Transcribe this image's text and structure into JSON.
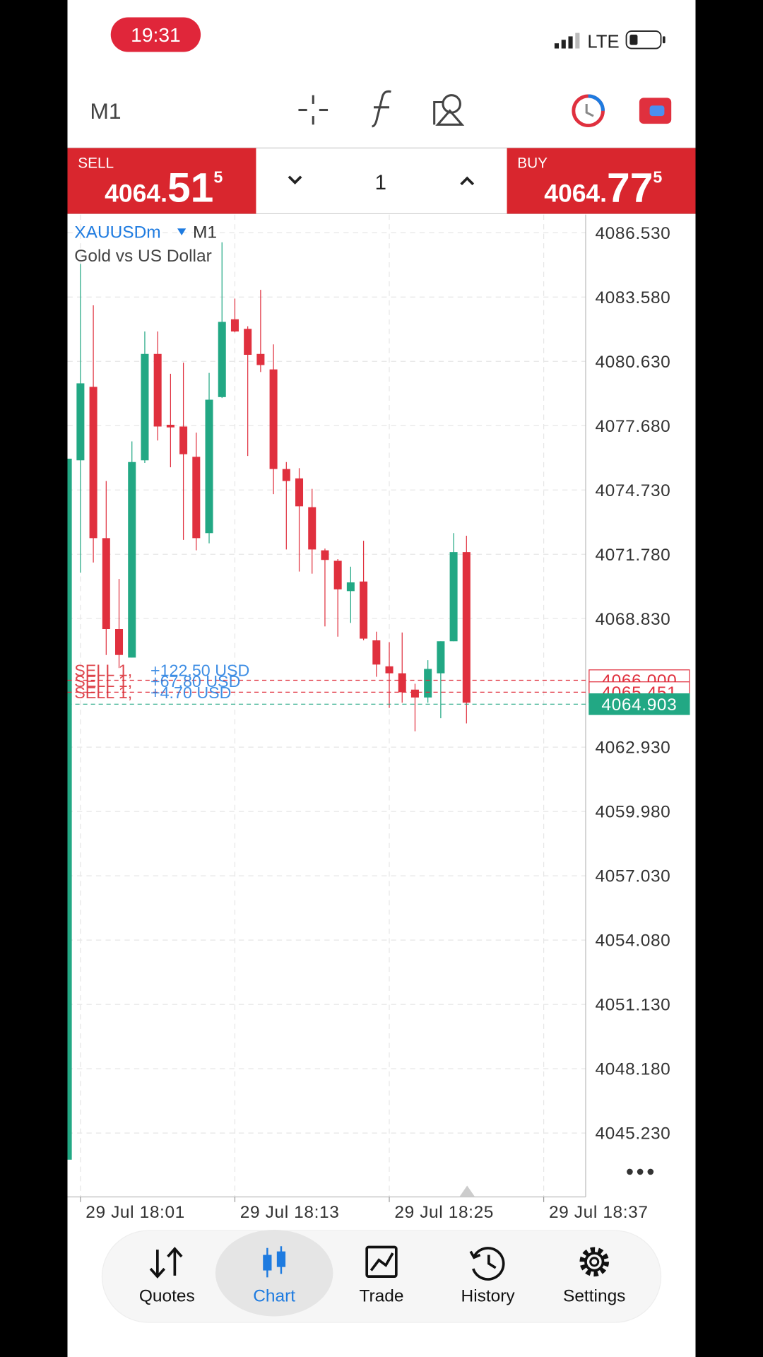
{
  "status_bar": {
    "time": "19:31",
    "network": "LTE"
  },
  "toolbar": {
    "timeframe": "M1"
  },
  "trade_panel": {
    "sell": {
      "label": "SELL",
      "price_head": "4064.",
      "price_big": "51",
      "pipette": "5"
    },
    "volume": "1",
    "buy": {
      "label": "BUY",
      "price_head": "4064.",
      "price_big": "77",
      "pipette": "5"
    }
  },
  "chart_data": {
    "type": "candlestick",
    "symbol": "XAUUSDm",
    "timeframe": "M1",
    "description": "Gold vs US Dollar",
    "up_color": "#22a884",
    "down_color": "#e0303e",
    "categories": [
      "29 Jul 18:01",
      null,
      null,
      null,
      null,
      null,
      null,
      null,
      null,
      null,
      null,
      null,
      "29 Jul 18:13",
      null,
      null,
      null,
      null,
      null,
      null,
      null,
      null,
      null,
      null,
      null,
      "29 Jul 18:25",
      null,
      null,
      null,
      null,
      null,
      null,
      null,
      null,
      null,
      null,
      null,
      "29 Jul 18:37"
    ],
    "open": [
      4076.09,
      4079.46,
      4072.52,
      4068.35,
      4067.04,
      4076.09,
      4080.97,
      4077.72,
      4077.64,
      4076.25,
      4072.75,
      4078.99,
      4082.56,
      4082.12,
      4080.97,
      4080.26,
      4075.69,
      4075.26,
      4073.94,
      4071.96,
      4071.48,
      4070.09,
      4070.53,
      4067.83,
      4066.64,
      4066.32,
      4065.57,
      4065.21,
      4066.32,
      4067.79,
      4071.88,
      null,
      null,
      null,
      null,
      null,
      null
    ],
    "high": [
      4085.1,
      4083.2,
      4075.14,
      4070.65,
      4076.96,
      4082.0,
      4082.0,
      4080.06,
      4080.57,
      4077.36,
      4080.1,
      4086.09,
      4083.51,
      4082.24,
      4083.91,
      4081.41,
      4076.01,
      4075.73,
      4074.78,
      4072.04,
      4071.56,
      4071.21,
      4072.4,
      4068.23,
      4067.75,
      4068.19,
      4065.84,
      4066.92,
      4067.79,
      4072.75,
      4072.63,
      null,
      null,
      null,
      null,
      null,
      null
    ],
    "low": [
      4070.93,
      4071.4,
      4067.16,
      4066.56,
      4067.04,
      4075.97,
      4077.0,
      4075.77,
      4072.44,
      4071.96,
      4072.28,
      4078.95,
      4081.96,
      4076.29,
      4080.14,
      4074.54,
      4072.0,
      4070.99,
      4070.89,
      4068.47,
      4068.0,
      4068.63,
      4067.83,
      4066.16,
      4064.73,
      4064.97,
      4063.66,
      4064.97,
      4064.26,
      4067.79,
      4064.02,
      null,
      null,
      null,
      null,
      null,
      null
    ],
    "close": [
      4079.62,
      4072.52,
      4068.35,
      4067.16,
      4076.01,
      4080.97,
      4077.64,
      4077.6,
      4076.37,
      4072.52,
      4078.87,
      4082.44,
      4082.0,
      4080.93,
      4080.46,
      4075.69,
      4075.14,
      4073.98,
      4072.0,
      4071.52,
      4070.17,
      4070.49,
      4067.91,
      4066.72,
      4066.32,
      4065.45,
      4065.21,
      4066.52,
      4067.79,
      4071.88,
      4064.97,
      null,
      null,
      null,
      null,
      null,
      null
    ],
    "ylim": [
      4042.3,
      4087.36
    ],
    "yticks": [
      {
        "value": 4086.53,
        "label": "4086.530"
      },
      {
        "value": 4083.58,
        "label": "4083.580"
      },
      {
        "value": 4080.63,
        "label": "4080.630"
      },
      {
        "value": 4077.68,
        "label": "4077.680"
      },
      {
        "value": 4074.73,
        "label": "4074.730"
      },
      {
        "value": 4071.78,
        "label": "4071.780"
      },
      {
        "value": 4068.83,
        "label": "4068.830"
      },
      {
        "value": 4062.93,
        "label": "4062.930"
      },
      {
        "value": 4059.98,
        "label": "4059.980"
      },
      {
        "value": 4057.03,
        "label": "4057.030"
      },
      {
        "value": 4054.08,
        "label": "4054.080"
      },
      {
        "value": 4051.13,
        "label": "4051.130"
      },
      {
        "value": 4048.18,
        "label": "4048.180"
      },
      {
        "value": 4045.23,
        "label": "4045.230"
      }
    ],
    "grid": true,
    "price_tags": [
      {
        "value": 4066.0,
        "label": "4066.000",
        "color": "#e0303e"
      },
      {
        "value": 4065.451,
        "label": "4065.451",
        "color": "#e0303e"
      },
      {
        "value": 4064.903,
        "label": "4064.903",
        "color": "#22a884"
      }
    ],
    "positions": [
      {
        "side": "SELL 1,",
        "profit": "+122.50 USD"
      },
      {
        "side": "SELL 1,",
        "profit": "+67.80 USD"
      },
      {
        "side": "SELL 1,",
        "profit": "+4.70 USD"
      }
    ]
  },
  "nav": {
    "items": [
      "Quotes",
      "Chart",
      "Trade",
      "History",
      "Settings"
    ]
  }
}
